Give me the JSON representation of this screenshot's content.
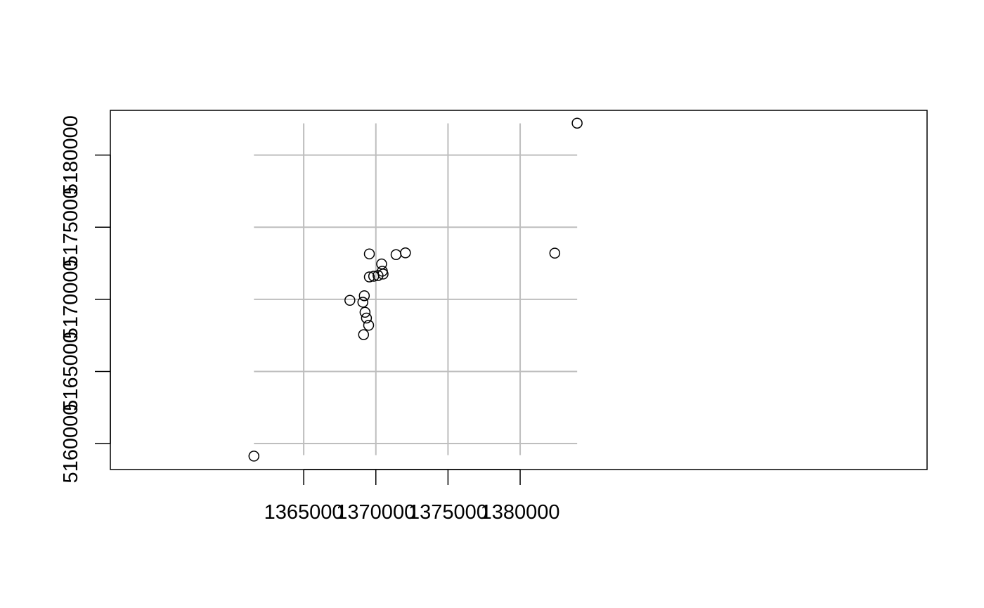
{
  "chart_data": {
    "type": "scatter",
    "title": "",
    "xlabel": "",
    "ylabel": "",
    "xlim": [
      1351600,
      1408200
    ],
    "ylim": [
      5158200,
      5183100
    ],
    "grid": true,
    "legend": "",
    "x_ticks": [
      {
        "value": 1365000,
        "label": "1365000"
      },
      {
        "value": 1370000,
        "label": "1370000"
      },
      {
        "value": 1375000,
        "label": "1375000"
      },
      {
        "value": 1380000,
        "label": "1380000"
      }
    ],
    "y_ticks": [
      {
        "value": 5160000,
        "label": "5160000"
      },
      {
        "value": 5165000,
        "label": "5165000"
      },
      {
        "value": 5170000,
        "label": "5170000"
      },
      {
        "value": 5175000,
        "label": "5175000"
      },
      {
        "value": 5180000,
        "label": "5180000"
      }
    ],
    "grid_x": [
      1365000,
      1370000,
      1375000,
      1380000
    ],
    "grid_y": [
      5160000,
      5165000,
      5170000,
      5175000,
      5180000
    ],
    "grid_x_extent": [
      1361550,
      1383950
    ],
    "grid_y_extent": [
      5159200,
      5182200
    ],
    "points": [
      {
        "x": 1361550,
        "y": 5159130
      },
      {
        "x": 1383950,
        "y": 5182210
      },
      {
        "x": 1382400,
        "y": 5173200
      },
      {
        "x": 1369550,
        "y": 5173150
      },
      {
        "x": 1371400,
        "y": 5173100
      },
      {
        "x": 1372050,
        "y": 5173220
      },
      {
        "x": 1370400,
        "y": 5172450
      },
      {
        "x": 1370450,
        "y": 5171950
      },
      {
        "x": 1370500,
        "y": 5171750
      },
      {
        "x": 1370150,
        "y": 5171650
      },
      {
        "x": 1369850,
        "y": 5171600
      },
      {
        "x": 1369550,
        "y": 5171550
      },
      {
        "x": 1369200,
        "y": 5170250
      },
      {
        "x": 1368200,
        "y": 5169930
      },
      {
        "x": 1369100,
        "y": 5169800
      },
      {
        "x": 1369250,
        "y": 5169100
      },
      {
        "x": 1369350,
        "y": 5168700
      },
      {
        "x": 1369500,
        "y": 5168200
      },
      {
        "x": 1369150,
        "y": 5167550
      }
    ]
  }
}
